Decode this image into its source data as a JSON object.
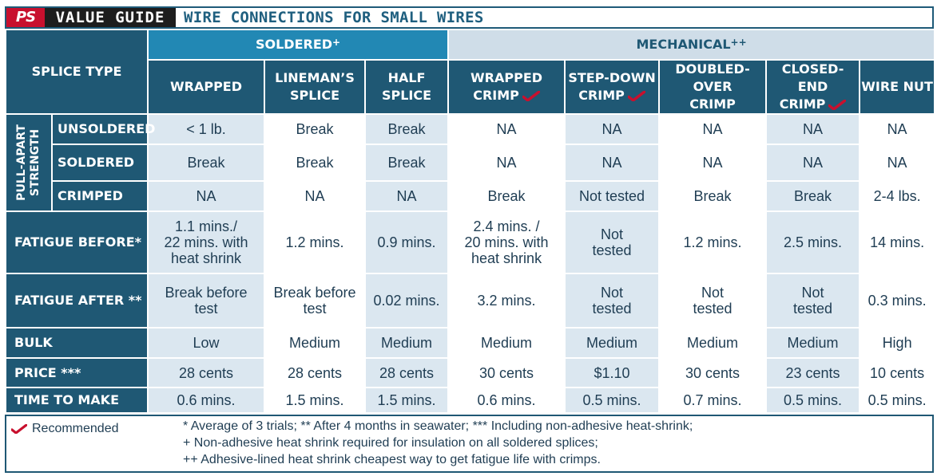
{
  "header": {
    "logo": "PS",
    "label": "VALUE GUIDE",
    "title": "WIRE CONNECTIONS FOR SMALL WIRES"
  },
  "groups": {
    "soldered": {
      "label": "SOLDERED",
      "mark": "+"
    },
    "mechanical": {
      "label": "MECHANICAL",
      "mark": "++"
    }
  },
  "splice_type_label": "SPLICE TYPE",
  "columns": [
    {
      "line1": "WRAPPED",
      "line2": "",
      "recommended": false
    },
    {
      "line1": "LINEMAN’S",
      "line2": "SPLICE",
      "recommended": false
    },
    {
      "line1": "HALF",
      "line2": "SPLICE",
      "recommended": false
    },
    {
      "line1": "WRAPPED",
      "line2": "CRIMP",
      "recommended": true
    },
    {
      "line1": "STEP-DOWN",
      "line2": "CRIMP",
      "recommended": true
    },
    {
      "line1": "DOUBLED-OVER",
      "line2": "CRIMP",
      "recommended": false
    },
    {
      "line1": "CLOSED-END",
      "line2": "CRIMP",
      "recommended": true
    },
    {
      "line1": "WIRE NUT",
      "line2": "",
      "recommended": false
    }
  ],
  "pull_apart": {
    "label_line1": "PULL-APART",
    "label_line2": "STRENGTH",
    "rows": [
      {
        "label": "UNSOLDERED",
        "values": [
          "< 1 lb.",
          "Break",
          "Break",
          "NA",
          "NA",
          "NA",
          "NA",
          "NA"
        ]
      },
      {
        "label": "SOLDERED",
        "values": [
          "Break",
          "Break",
          "Break",
          "NA",
          "NA",
          "NA",
          "NA",
          "NA"
        ]
      },
      {
        "label": "CRIMPED",
        "values": [
          "NA",
          "NA",
          "NA",
          "Break",
          "Not tested",
          "Break",
          "Break",
          "2-4 lbs."
        ]
      }
    ]
  },
  "rows": [
    {
      "label": "FATIGUE BEFORE*",
      "values": [
        [
          "1.1 mins./",
          "22 mins. with",
          "heat shrink"
        ],
        [
          "1.2 mins."
        ],
        [
          "0.9 mins."
        ],
        [
          "2.4 mins. /",
          "20 mins. with",
          "heat shrink"
        ],
        [
          "Not",
          "tested"
        ],
        [
          "1.2 mins."
        ],
        [
          "2.5 mins."
        ],
        [
          "14 mins."
        ]
      ]
    },
    {
      "label": "FATIGUE AFTER **",
      "values": [
        [
          "Break before",
          "test"
        ],
        [
          "Break before",
          "test"
        ],
        [
          "0.02 mins."
        ],
        [
          "3.2 mins."
        ],
        [
          "Not",
          "tested"
        ],
        [
          "Not",
          "tested"
        ],
        [
          "Not",
          "tested"
        ],
        [
          "0.3 mins."
        ]
      ]
    },
    {
      "label": "BULK",
      "values": [
        [
          "Low"
        ],
        [
          "Medium"
        ],
        [
          "Medium"
        ],
        [
          "Medium"
        ],
        [
          "Medium"
        ],
        [
          "Medium"
        ],
        [
          "Medium"
        ],
        [
          "High"
        ]
      ]
    },
    {
      "label": "PRICE ***",
      "values": [
        [
          "28 cents"
        ],
        [
          "28 cents"
        ],
        [
          "28 cents"
        ],
        [
          "30 cents"
        ],
        [
          "$1.10"
        ],
        [
          "30 cents"
        ],
        [
          "23 cents"
        ],
        [
          "10 cents"
        ]
      ]
    },
    {
      "label": "TIME TO MAKE",
      "values": [
        [
          "0.6 mins."
        ],
        [
          "1.5 mins."
        ],
        [
          "1.5 mins."
        ],
        [
          "0.6 mins."
        ],
        [
          "0.5 mins."
        ],
        [
          "0.7 mins."
        ],
        [
          "0.5 mins."
        ],
        [
          "0.5 mins."
        ]
      ]
    }
  ],
  "footer": {
    "recommended_label": "Recommended",
    "notes": [
      "* Average of 3 trials;   ** After 4 months in seawater;   *** Including non-adhesive heat-shrink;",
      "+ Non-adhesive heat shrink required for insulation on all soldered splices;",
      "++ Adhesive-lined heat shrink cheapest way to get fatigue life with crimps."
    ]
  },
  "colors": {
    "dark_blue": "#1f5874",
    "soldered_blue": "#2288b4",
    "light_blue": "#dbe7f0",
    "mechanical_header": "#cfdde8",
    "logo_red": "#c8102e",
    "check_red": "#c8102e"
  },
  "icons": {
    "recommended": "red-check-icon"
  }
}
